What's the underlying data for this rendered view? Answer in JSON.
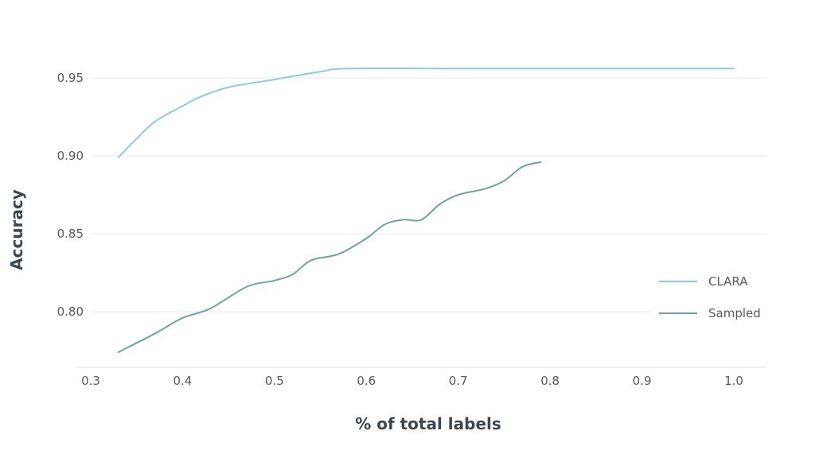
{
  "chart_data": {
    "type": "line",
    "xlabel": "% of total labels",
    "ylabel": "Accuracy",
    "xlim": [
      0.3,
      1.0
    ],
    "ylim": [
      0.775,
      0.955
    ],
    "x_ticks": [
      "0.3",
      "0.4",
      "0.5",
      "0.6",
      "0.7",
      "0.8",
      "0.9",
      "1.0"
    ],
    "y_ticks": [
      "0.80",
      "0.85",
      "0.90",
      "0.95"
    ],
    "grid": "horizontal",
    "legend_position": "right",
    "series": [
      {
        "name": "CLARA",
        "color": "#8ccbe3",
        "points": [
          [
            0.33,
            0.899
          ],
          [
            0.35,
            0.911
          ],
          [
            0.37,
            0.922
          ],
          [
            0.4,
            0.932
          ],
          [
            0.42,
            0.938
          ],
          [
            0.45,
            0.944
          ],
          [
            0.5,
            0.949
          ],
          [
            0.55,
            0.954
          ],
          [
            0.58,
            0.956
          ],
          [
            0.7,
            0.956
          ],
          [
            0.8,
            0.956
          ],
          [
            0.9,
            0.956
          ],
          [
            1.0,
            0.956
          ]
        ]
      },
      {
        "name": "Sampled",
        "color": "#6aa6a0",
        "points": [
          [
            0.33,
            0.774
          ],
          [
            0.37,
            0.786
          ],
          [
            0.4,
            0.796
          ],
          [
            0.43,
            0.802
          ],
          [
            0.47,
            0.816
          ],
          [
            0.5,
            0.82
          ],
          [
            0.52,
            0.824
          ],
          [
            0.54,
            0.833
          ],
          [
            0.57,
            0.837
          ],
          [
            0.6,
            0.847
          ],
          [
            0.62,
            0.856
          ],
          [
            0.64,
            0.859
          ],
          [
            0.66,
            0.859
          ],
          [
            0.68,
            0.869
          ],
          [
            0.7,
            0.875
          ],
          [
            0.73,
            0.879
          ],
          [
            0.75,
            0.884
          ],
          [
            0.77,
            0.893
          ],
          [
            0.79,
            0.896
          ]
        ]
      }
    ]
  }
}
